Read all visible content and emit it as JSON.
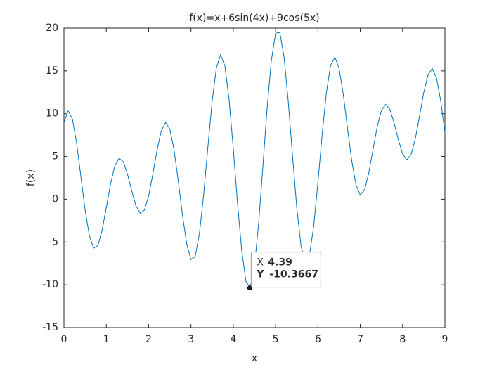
{
  "chart_data": {
    "type": "line",
    "title": "f(x)=x+6sin(4x)+9cos(5x)",
    "x_label": "x",
    "y_label": "f(x)",
    "x": [
      0,
      0.1,
      0.2,
      0.3,
      0.4,
      0.5,
      0.6,
      0.7,
      0.8,
      0.9,
      1,
      1.1,
      1.2,
      1.3,
      1.4,
      1.5,
      1.6,
      1.7,
      1.8,
      1.9,
      2,
      2.1,
      2.2,
      2.3,
      2.4,
      2.5,
      2.6,
      2.7,
      2.8,
      2.9,
      3,
      3.1,
      3.2,
      3.3,
      3.4,
      3.5,
      3.6,
      3.7,
      3.8,
      3.9,
      4,
      4.1,
      4.2,
      4.3,
      4.4,
      4.5,
      4.6,
      4.7,
      4.8,
      4.9,
      5,
      5.1,
      5.2,
      5.3,
      5.4,
      5.5,
      5.6,
      5.7,
      5.8,
      5.9,
      6,
      6.1,
      6.2,
      6.3,
      6.4,
      6.5,
      6.6,
      6.7,
      6.8,
      6.9,
      7,
      7.1,
      7.2,
      7.3,
      7.4,
      7.5,
      7.6,
      7.7,
      7.8,
      7.9,
      8,
      8.1,
      8.2,
      8.3,
      8.4,
      8.5,
      8.6,
      8.7,
      8.8,
      8.9,
      9
    ],
    "values": [
      9.0,
      10.33,
      9.37,
      6.53,
      2.65,
      -1.25,
      -4.26,
      -5.72,
      -5.43,
      -3.65,
      -0.99,
      1.77,
      3.87,
      4.79,
      4.4,
      2.94,
      0.99,
      -0.75,
      -1.64,
      -1.27,
      0.38,
      2.95,
      5.75,
      7.99,
      8.95,
      8.22,
      5.8,
      2.16,
      -1.85,
      -5.23,
      -7.06,
      -6.7,
      -4.03,
      0.52,
      6.08,
      11.42,
      15.34,
      16.89,
      15.62,
      11.71,
      5.95,
      -0.44,
      -6.05,
      -9.62,
      -10.29,
      -7.87,
      -2.8,
      3.85,
      10.68,
      16.25,
      19.4,
      19.5,
      16.6,
      11.39,
      5.06,
      -0.98,
      -5.45,
      -7.42,
      -6.54,
      -3.15,
      1.96,
      7.57,
      12.47,
      15.67,
      16.61,
      15.29,
      12.21,
      8.25,
      4.44,
      1.67,
      0.49,
      1.07,
      3.04,
      5.77,
      8.47,
      10.39,
      11.09,
      10.5,
      8.91,
      6.95,
      5.31,
      4.61,
      5.21,
      7.04,
      9.71,
      12.47,
      14.54,
      15.27,
      14.21,
      11.53,
      7.78
    ],
    "color": "#0072bd",
    "xlim": [
      0,
      9
    ],
    "xticks": [
      0,
      1,
      2,
      3,
      4,
      5,
      6,
      7,
      8,
      9
    ],
    "ylim": [
      -15,
      20
    ],
    "yticks": [
      -15,
      -10,
      -5,
      0,
      5,
      10,
      15,
      20
    ],
    "grid": false,
    "datatip": {
      "x_label": "X",
      "y_label": "Y",
      "x": 4.39,
      "y": -10.3667
    }
  }
}
